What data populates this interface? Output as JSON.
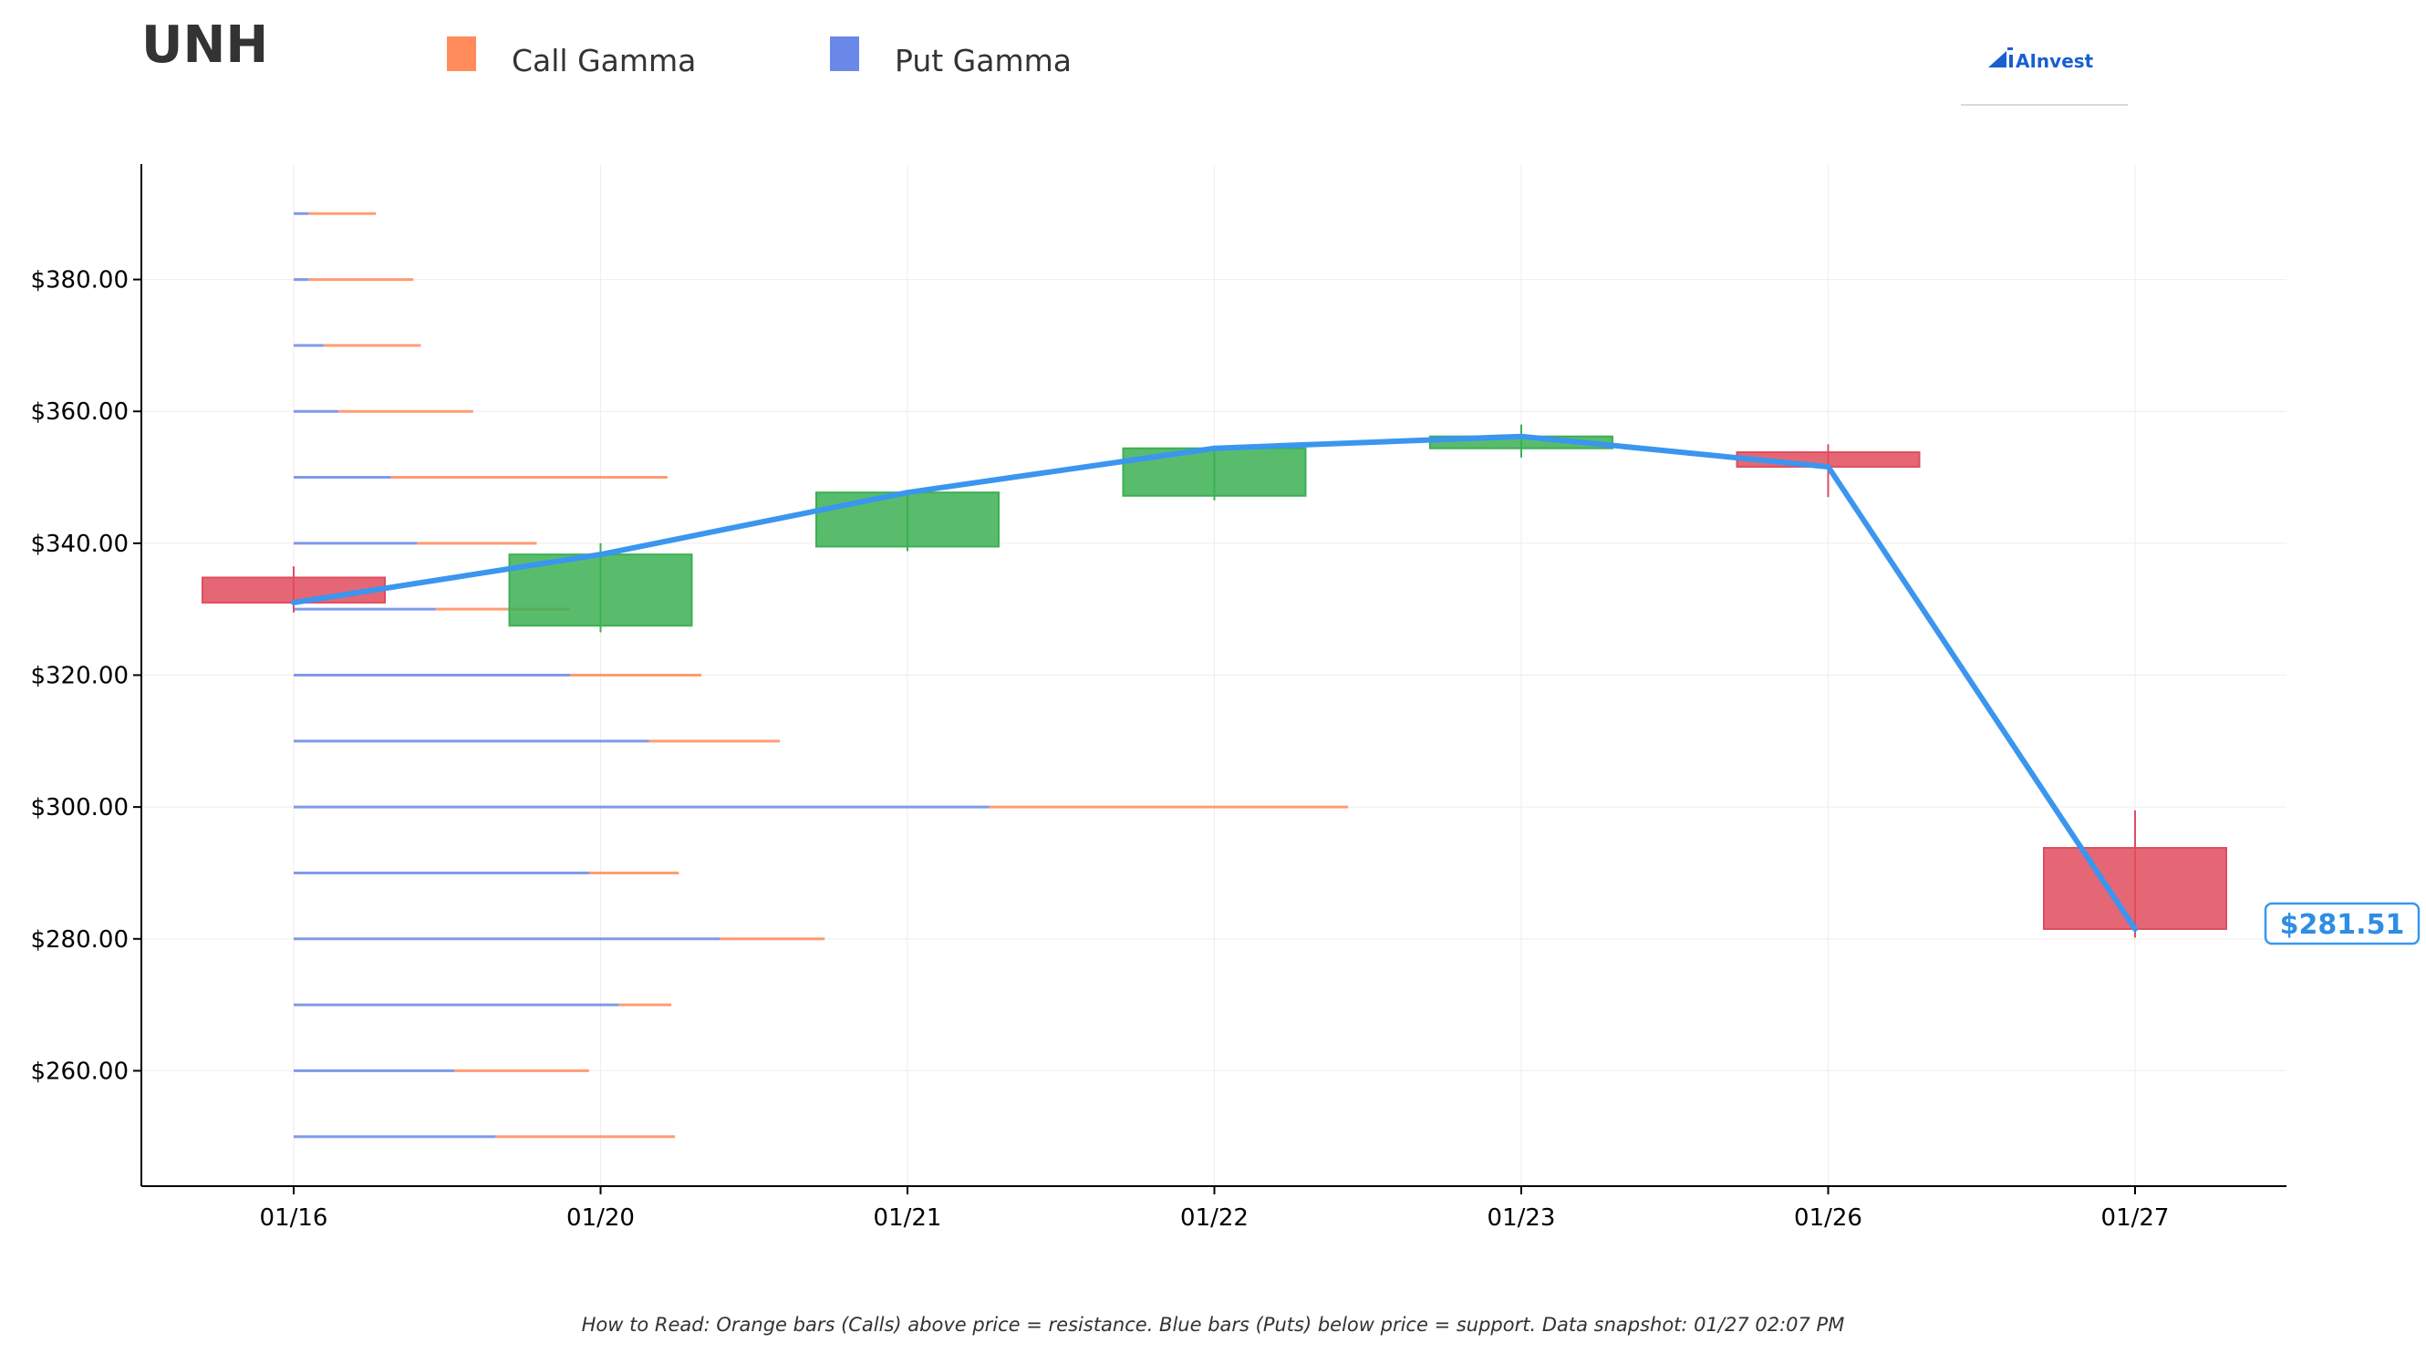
{
  "header": {
    "ticker": "UNH",
    "logo_text": "AInvest"
  },
  "legend": [
    {
      "label": "Call Gamma",
      "color": "#ff8c5a"
    },
    {
      "label": "Put Gamma",
      "color": "#6a88e8"
    }
  ],
  "current_price_label": "$281.51",
  "footnote": "How to Read: Orange bars (Calls) above price = resistance. Blue bars (Puts) below price = support. Data snapshot: 01/27 02:07 PM",
  "colors": {
    "up": "#3cb054",
    "down": "#e04c5e",
    "line": "#3a96ee",
    "call": "#ff8c5a",
    "put": "#6a88e8"
  },
  "chart_data": {
    "type": "candlestick",
    "x_categories": [
      "01/16",
      "01/20",
      "01/21",
      "01/22",
      "01/23",
      "01/26",
      "01/27"
    ],
    "ylim": [
      242.5,
      397.5
    ],
    "y_ticks": [
      260,
      280,
      300,
      320,
      340,
      360,
      380
    ],
    "y_tick_labels": [
      "$260.00",
      "$280.00",
      "$300.00",
      "$320.00",
      "$340.00",
      "$360.00",
      "$380.00"
    ],
    "candles": [
      {
        "date": "01/16",
        "open": 334.8,
        "high": 336.5,
        "low": 329.5,
        "close": 331.0
      },
      {
        "date": "01/20",
        "open": 327.5,
        "high": 340.0,
        "low": 326.5,
        "close": 338.3
      },
      {
        "date": "01/21",
        "open": 339.5,
        "high": 347.8,
        "low": 338.8,
        "close": 347.7
      },
      {
        "date": "01/22",
        "open": 347.2,
        "high": 354.8,
        "low": 346.5,
        "close": 354.4
      },
      {
        "date": "01/23",
        "open": 354.4,
        "high": 358.0,
        "low": 353.0,
        "close": 356.2
      },
      {
        "date": "01/26",
        "open": 353.8,
        "high": 355.0,
        "low": 347.0,
        "close": 351.6
      },
      {
        "date": "01/27",
        "open": 293.8,
        "high": 299.5,
        "low": 280.2,
        "close": 281.5
      }
    ],
    "close_line": [
      331.0,
      338.3,
      347.7,
      354.4,
      356.2,
      351.6,
      281.51
    ],
    "gamma_levels": [
      {
        "strike": 390,
        "put": 0.2,
        "call": 0.9
      },
      {
        "strike": 380,
        "put": 0.2,
        "call": 1.4
      },
      {
        "strike": 370,
        "put": 0.4,
        "call": 1.3
      },
      {
        "strike": 360,
        "put": 0.6,
        "call": 1.8
      },
      {
        "strike": 350,
        "put": 1.3,
        "call": 3.7
      },
      {
        "strike": 340,
        "put": 1.65,
        "call": 1.6
      },
      {
        "strike": 330,
        "put": 1.9,
        "call": 1.8
      },
      {
        "strike": 320,
        "put": 3.7,
        "call": 1.75
      },
      {
        "strike": 310,
        "put": 4.75,
        "call": 1.75
      },
      {
        "strike": 300,
        "put": 9.3,
        "call": 4.8
      },
      {
        "strike": 290,
        "put": 3.95,
        "call": 1.2
      },
      {
        "strike": 280,
        "put": 5.7,
        "call": 1.4
      },
      {
        "strike": 270,
        "put": 4.35,
        "call": 0.7
      },
      {
        "strike": 260,
        "put": 2.15,
        "call": 1.8
      },
      {
        "strike": 250,
        "put": 2.7,
        "call": 2.4
      }
    ]
  }
}
